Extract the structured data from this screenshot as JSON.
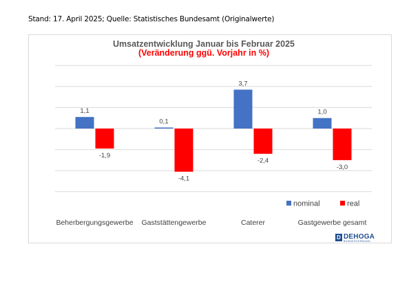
{
  "header": {
    "stand_text": "Stand: 17. April 2025; Quelle: Statistisches Bundesamt (Originalwerte)"
  },
  "logo": {
    "text": "DEHOGA",
    "subtext": "BUNDESVERBAND"
  },
  "colors": {
    "nominal": "#4472c4",
    "real": "#ff0000",
    "title": "#595959",
    "subtitle": "#ff0000",
    "grid": "#d9d9d9",
    "axis_text": "#404040"
  },
  "chart_data": {
    "type": "bar",
    "title": "Umsatzentwicklung Januar bis Februar 2025",
    "subtitle": "(Veränderung ggü. Vorjahr in %)",
    "categories": [
      "Beherbergungsgewerbe",
      "Gaststättengewerbe",
      "Caterer",
      "Gastgewerbe gesamt"
    ],
    "series": [
      {
        "name": "nominal",
        "values": [
          1.1,
          0.1,
          3.7,
          1.0
        ],
        "labels": [
          "1,1",
          "0,1",
          "3,7",
          "1,0"
        ]
      },
      {
        "name": "real",
        "values": [
          -1.9,
          -4.1,
          -2.4,
          -3.0
        ],
        "labels": [
          "-1,9",
          "-4,1",
          "-2,4",
          "-3,0"
        ]
      }
    ],
    "ylim": [
      -6,
      6
    ],
    "grid": true,
    "legend_position": "bottom-right"
  }
}
